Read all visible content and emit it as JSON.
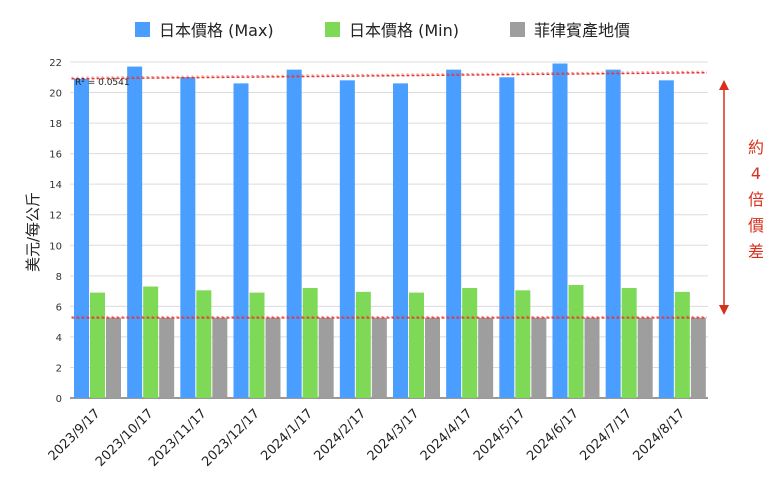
{
  "chart_data": {
    "type": "bar",
    "categories": [
      "2023/9/17",
      "2023/10/17",
      "2023/11/17",
      "2023/12/17",
      "2024/1/17",
      "2024/2/17",
      "2024/3/17",
      "2024/4/17",
      "2024/5/17",
      "2024/6/17",
      "2024/7/17",
      "2024/8/17"
    ],
    "series": [
      {
        "name": "日本價格 (Max)",
        "color": "#4a9eff",
        "values": [
          20.9,
          21.7,
          21.0,
          20.6,
          21.5,
          20.8,
          20.6,
          21.5,
          21.0,
          21.9,
          21.5,
          20.8
        ]
      },
      {
        "name": "日本價格 (Min)",
        "color": "#7ed957",
        "values": [
          6.9,
          7.3,
          7.05,
          6.9,
          7.2,
          6.95,
          6.9,
          7.2,
          7.05,
          7.4,
          7.2,
          6.95
        ]
      },
      {
        "name": "菲律賓產地價",
        "color": "#9e9e9e",
        "values": [
          5.25,
          5.25,
          5.25,
          5.25,
          5.25,
          5.25,
          5.25,
          5.25,
          5.25,
          5.25,
          5.25,
          5.25
        ]
      }
    ],
    "ylabel": "美元/每公斤",
    "ylim": [
      0,
      22
    ],
    "yticks": [
      0,
      2,
      4,
      6,
      8,
      10,
      12,
      14,
      16,
      18,
      20,
      22
    ],
    "grid": true,
    "legend": "top",
    "trendlines": [
      {
        "series": "日本價格 (Max)",
        "label": "R² = 0.0541",
        "start": 20.9,
        "end": 21.3,
        "color": "#e53935"
      },
      {
        "series": "菲律賓產地價",
        "start": 5.25,
        "end": 5.25,
        "color": "#e53935"
      }
    ],
    "annotation": {
      "text": [
        "約",
        "4",
        "倍",
        "價",
        "差"
      ],
      "color": "#d9301c"
    }
  }
}
